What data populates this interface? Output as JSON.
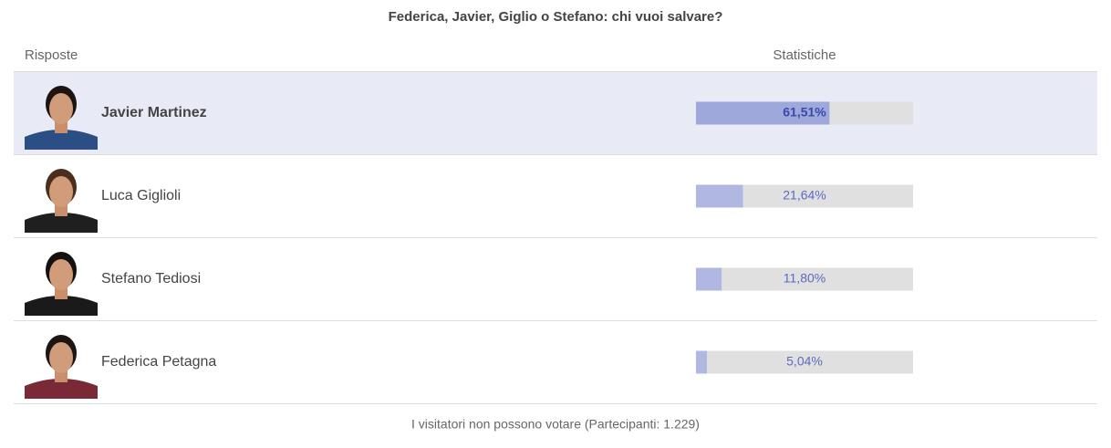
{
  "header": {
    "title": "Federica, Javier, Giglio o Stefano: chi vuoi salvare?",
    "columns": [
      "Risposte",
      "Statistiche"
    ]
  },
  "xlim": [
    0,
    100
  ],
  "rows": [
    {
      "name": "Javier Martinez",
      "value": 61.51,
      "value_label": "61,51%",
      "highlighted": true
    },
    {
      "name": "Luca Giglioli",
      "value": 21.64,
      "value_label": "21,64%"
    },
    {
      "name": "Stefano Tediosi",
      "value": 11.8,
      "value_label": "11,80%"
    },
    {
      "name": "Federica Petagna",
      "value": 5.04,
      "value_label": "5,04%"
    }
  ],
  "footer": "I visitatori non possono votare (Partecipanti: 1.229)"
}
